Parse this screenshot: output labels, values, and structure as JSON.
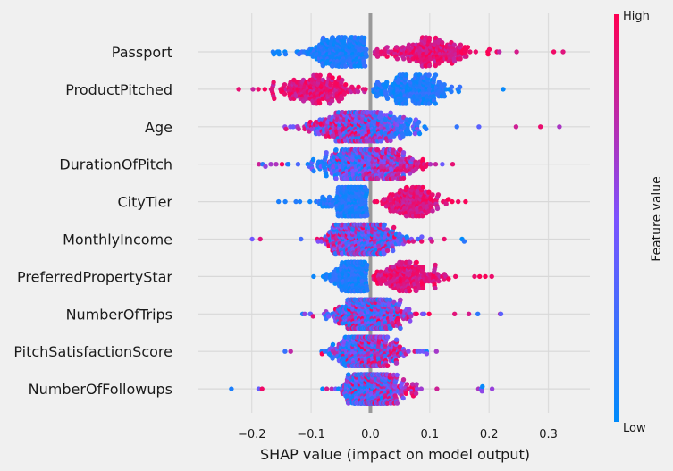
{
  "chart_data": {
    "type": "scatter",
    "subtype": "beeswarm",
    "xlabel": "SHAP value (impact on model output)",
    "xlim": [
      -0.29,
      0.37
    ],
    "xticks": [
      -0.2,
      -0.1,
      0.0,
      0.1,
      0.2,
      0.3
    ],
    "xtick_labels": [
      "−0.2",
      "−0.1",
      "0.0",
      "0.1",
      "0.2",
      "0.3"
    ],
    "grid": true,
    "colorbar": {
      "label": "Feature value",
      "high_label": "High",
      "low_label": "Low",
      "low_color": "#008bfb",
      "mid_color": "#7c52ff",
      "high_color": "#ff0052"
    },
    "features": [
      {
        "name": "Passport",
        "min": -0.18,
        "max": 0.345,
        "center_low": -0.05,
        "center_high": 0.1,
        "spread_low": 0.05,
        "spread_high": 0.07,
        "low_side": "negative",
        "pattern": "split"
      },
      {
        "name": "ProductPitched",
        "min": -0.235,
        "max": 0.225,
        "center_low": 0.07,
        "center_high": -0.09,
        "spread_low": 0.06,
        "spread_high": 0.06,
        "low_side": "positive",
        "pattern": "split"
      },
      {
        "name": "Age",
        "min": -0.16,
        "max": 0.34,
        "center_low": 0.02,
        "center_high": -0.04,
        "spread_low": 0.07,
        "spread_high": 0.05,
        "pattern": "mixed"
      },
      {
        "name": "DurationOfPitch",
        "min": -0.19,
        "max": 0.22,
        "center_low": -0.05,
        "center_high": 0.04,
        "spread_low": 0.05,
        "spread_high": 0.06,
        "pattern": "mixed"
      },
      {
        "name": "CityTier",
        "min": -0.155,
        "max": 0.175,
        "center_low": -0.03,
        "center_high": 0.07,
        "spread_low": 0.04,
        "spread_high": 0.04,
        "low_side": "negative",
        "pattern": "split"
      },
      {
        "name": "MonthlyIncome",
        "min": -0.2,
        "max": 0.16,
        "center_low": -0.01,
        "center_high": -0.02,
        "spread_low": 0.05,
        "spread_high": 0.05,
        "pattern": "mixed"
      },
      {
        "name": "PreferredPropertyStar",
        "min": -0.1,
        "max": 0.21,
        "center_low": -0.03,
        "center_high": 0.06,
        "spread_low": 0.03,
        "spread_high": 0.05,
        "low_side": "negative",
        "pattern": "split"
      },
      {
        "name": "NumberOfTrips",
        "min": -0.13,
        "max": 0.25,
        "center_low": -0.01,
        "center_high": 0.01,
        "spread_low": 0.04,
        "spread_high": 0.06,
        "pattern": "mixed"
      },
      {
        "name": "PitchSatisfactionScore",
        "min": -0.165,
        "max": 0.115,
        "center_low": -0.02,
        "center_high": 0.01,
        "spread_low": 0.04,
        "spread_high": 0.04,
        "pattern": "mixed"
      },
      {
        "name": "NumberOfFollowups",
        "min": -0.26,
        "max": 0.22,
        "center_low": -0.01,
        "center_high": 0.02,
        "spread_low": 0.03,
        "spread_high": 0.05,
        "pattern": "mixed"
      }
    ]
  }
}
